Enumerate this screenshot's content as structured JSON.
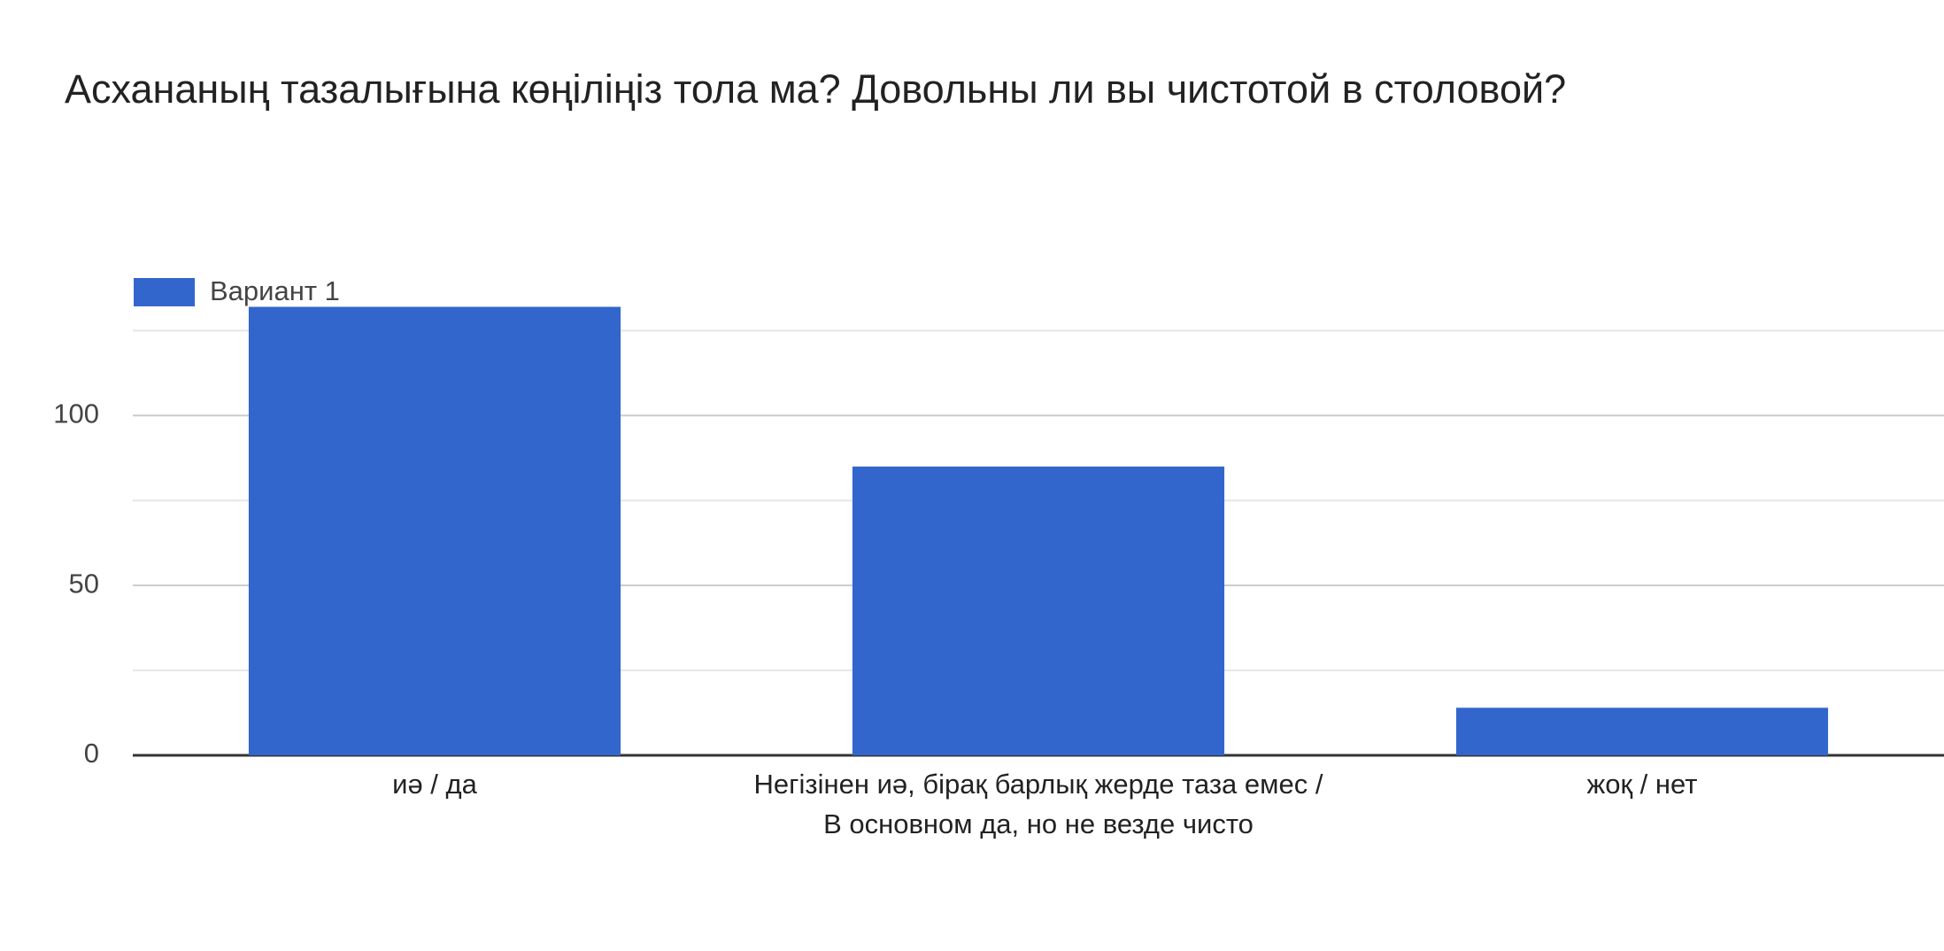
{
  "chart_data": {
    "type": "bar",
    "title": "Асхананың тазалығына көңіліңіз тола ма?  Довольны ли вы чистотой в столовой?",
    "categories": [
      "иә / да",
      "Негізінен иә, бірақ барлық жерде таза емес / В основном да, но не везде чисто",
      "жоқ / нет"
    ],
    "series": [
      {
        "name": "Вариант 1",
        "color": "#3366cc",
        "values": [
          132,
          85,
          14
        ]
      }
    ],
    "ylim": [
      0,
      135
    ],
    "yticks": [
      0,
      50,
      100
    ],
    "minor_yticks": [
      25,
      75,
      125
    ],
    "grid": true,
    "legend": "top-left"
  }
}
